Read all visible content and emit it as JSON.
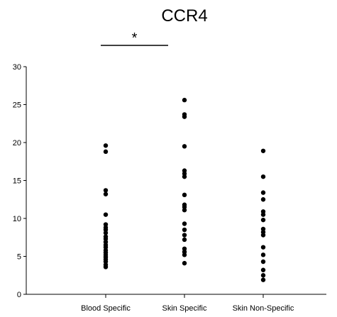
{
  "chart_data": {
    "type": "scatter",
    "title": "CCR4",
    "xlabel": "",
    "ylabel": "",
    "categories": [
      "Blood Specific",
      "Skin Specific",
      "Skin Non-Specific"
    ],
    "ylim": [
      0,
      30
    ],
    "yticks": [
      0,
      5,
      10,
      15,
      20,
      25,
      30
    ],
    "grid": false,
    "legend": "none",
    "marker_color": "#000000",
    "series": [
      {
        "category": "Blood Specific",
        "values": [
          19.6,
          18.8,
          13.7,
          13.2,
          10.5,
          9.2,
          8.8,
          8.5,
          8.1,
          7.6,
          7.3,
          6.9,
          6.5,
          6.2,
          5.8,
          5.5,
          5.2,
          4.9,
          4.6,
          4.3,
          3.9,
          3.6
        ]
      },
      {
        "category": "Skin Specific",
        "values": [
          25.6,
          23.7,
          23.4,
          19.5,
          16.3,
          15.9,
          15.5,
          13.1,
          11.8,
          11.5,
          11.1,
          9.3,
          8.5,
          7.8,
          7.2,
          6.0,
          5.6,
          5.2,
          4.1
        ]
      },
      {
        "category": "Skin Non-Specific",
        "values": [
          18.9,
          15.5,
          13.4,
          12.5,
          10.9,
          10.5,
          9.8,
          8.6,
          8.2,
          7.8,
          6.2,
          5.2,
          4.3,
          3.2,
          2.5,
          1.9
        ]
      }
    ],
    "annotations": [
      {
        "text": "*",
        "from": "Blood Specific",
        "to": "Skin Specific"
      }
    ]
  }
}
